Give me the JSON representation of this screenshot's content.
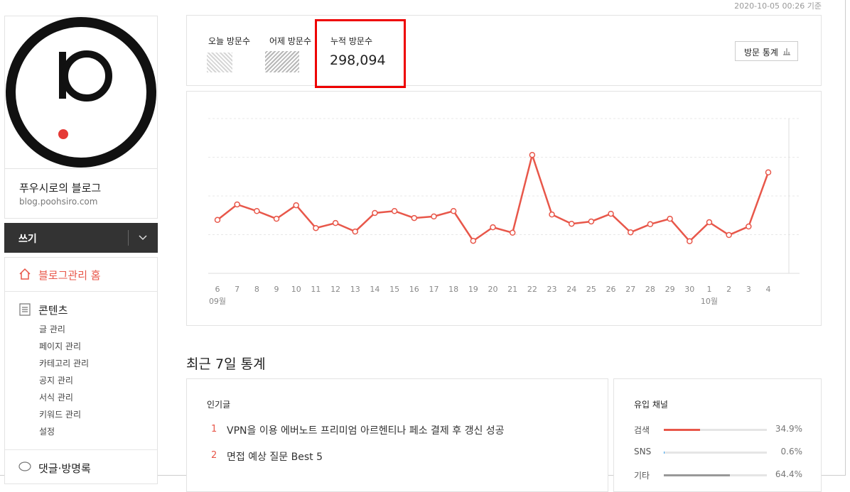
{
  "header": {
    "timestamp": "2020-10-05 00:26 기준"
  },
  "sidebar": {
    "blog_name": "푸우시로의 블로그",
    "blog_url": "blog.poohsiro.com",
    "write_button": "쓰기",
    "menu": {
      "home": "블로그관리 홈",
      "contents": {
        "title": "콘텐츠",
        "items": [
          "글 관리",
          "페이지 관리",
          "카테고리 관리",
          "공지 관리",
          "서식 관리",
          "키워드 관리",
          "설정"
        ]
      },
      "comments": "댓글·방명록"
    }
  },
  "stats": {
    "today_label": "오늘 방문수",
    "yesterday_label": "어제 방문수",
    "total_label": "누적 방문수",
    "total_value": "298,094",
    "button": "방문 통계"
  },
  "chart_data": {
    "type": "line",
    "categories": [
      "6",
      "7",
      "8",
      "9",
      "10",
      "11",
      "12",
      "13",
      "14",
      "15",
      "16",
      "17",
      "18",
      "19",
      "20",
      "21",
      "22",
      "23",
      "24",
      "25",
      "26",
      "27",
      "28",
      "29",
      "30",
      "1",
      "2",
      "3",
      "4"
    ],
    "values": [
      138,
      178,
      161,
      141,
      176,
      117,
      130,
      108,
      156,
      161,
      143,
      147,
      161,
      84,
      119,
      105,
      306,
      152,
      128,
      134,
      154,
      106,
      127,
      141,
      83,
      132,
      99,
      121,
      261
    ],
    "months": [
      "09월",
      "10월"
    ],
    "color": "#e8574a",
    "ylim": [
      0,
      400
    ],
    "yticks": [
      0,
      100,
      200,
      300,
      400
    ],
    "grid": true
  },
  "recent": {
    "title": "최근 7일 통계",
    "popular": {
      "title": "인기글",
      "items": [
        {
          "rank": "1",
          "title": "VPN을 이용 에버노트 프리미엄 아르헨티나 페소 결제 후 갱신 성공"
        },
        {
          "rank": "2",
          "title": "면접 예상 질문 Best 5"
        }
      ]
    },
    "channels": {
      "title": "유입 채널",
      "rows": [
        {
          "name": "검색",
          "value": 34.9,
          "value_label": "34.9%",
          "color": "#e8574a"
        },
        {
          "name": "SNS",
          "value": 0.6,
          "value_label": "0.6%",
          "color": "#3fa9f5"
        },
        {
          "name": "기타",
          "value": 64.4,
          "value_label": "64.4%",
          "color": "#999999"
        }
      ]
    }
  }
}
